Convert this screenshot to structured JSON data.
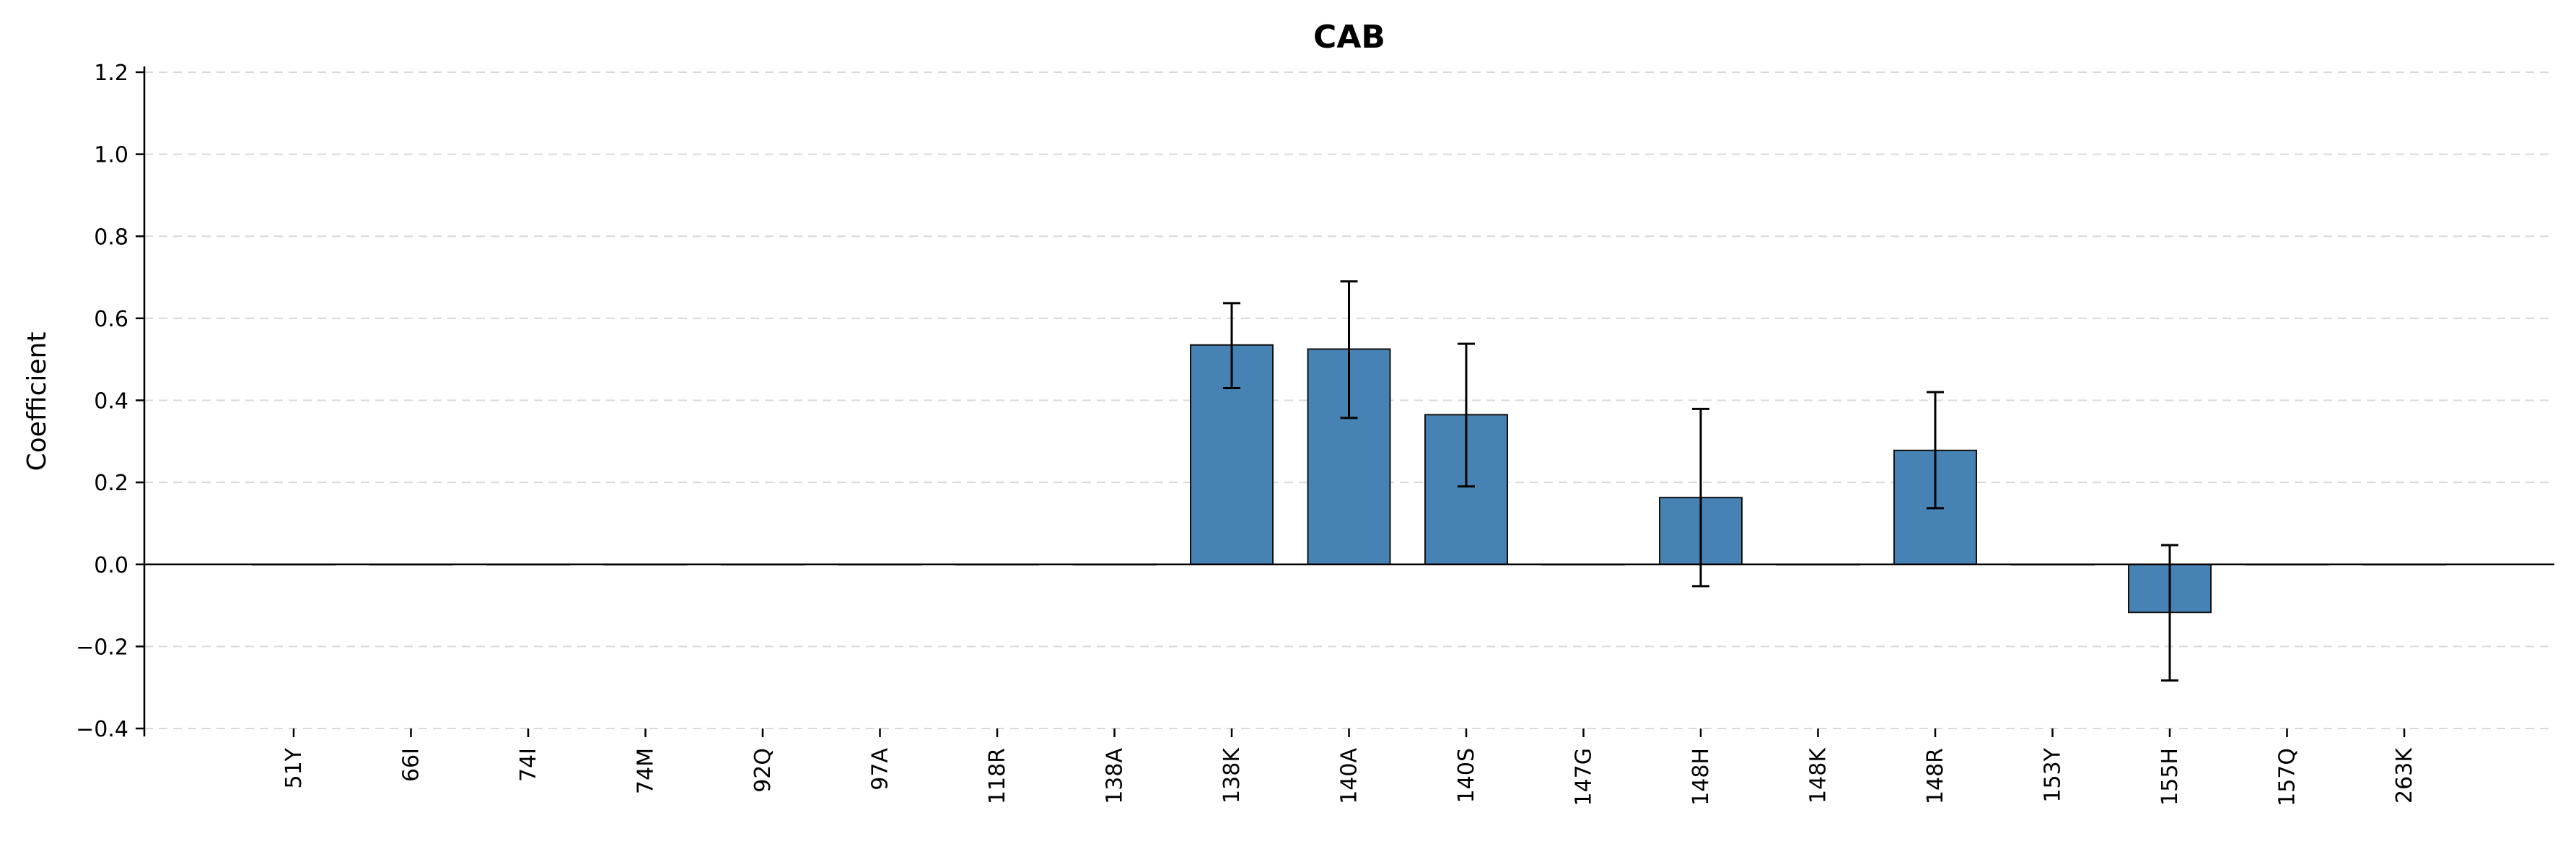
{
  "chart_data": {
    "type": "bar",
    "title": "CAB",
    "xlabel": "",
    "ylabel": "Coefficient",
    "ylim": [
      -0.4,
      1.2
    ],
    "yticks": [
      -0.4,
      -0.2,
      0.0,
      0.2,
      0.4,
      0.6,
      0.8,
      1.0,
      1.2
    ],
    "ytick_labels": [
      "−0.4",
      "−0.2",
      "0.0",
      "0.2",
      "0.4",
      "0.6",
      "0.8",
      "1.0",
      "1.2"
    ],
    "grid": "y-dashed",
    "bar_color": "#4682b4",
    "categories": [
      "51Y",
      "66I",
      "74I",
      "74M",
      "92Q",
      "97A",
      "118R",
      "138A",
      "138K",
      "140A",
      "140S",
      "147G",
      "148H",
      "148K",
      "148R",
      "153Y",
      "155H",
      "157Q",
      "263K"
    ],
    "values": [
      0,
      0,
      0,
      0,
      0,
      0,
      0,
      0,
      0.535,
      0.525,
      0.365,
      0,
      0.163,
      0,
      0.278,
      0,
      -0.117,
      0,
      0
    ],
    "error_low": [
      0,
      0,
      0,
      0,
      0,
      0,
      0,
      0,
      0.43,
      0.357,
      0.19,
      0,
      -0.053,
      0,
      0.137,
      0,
      -0.283,
      0,
      0
    ],
    "error_high": [
      0,
      0,
      0,
      0,
      0,
      0,
      0,
      0,
      0.637,
      0.69,
      0.538,
      0,
      0.379,
      0,
      0.42,
      0,
      0.047,
      0,
      0
    ]
  }
}
